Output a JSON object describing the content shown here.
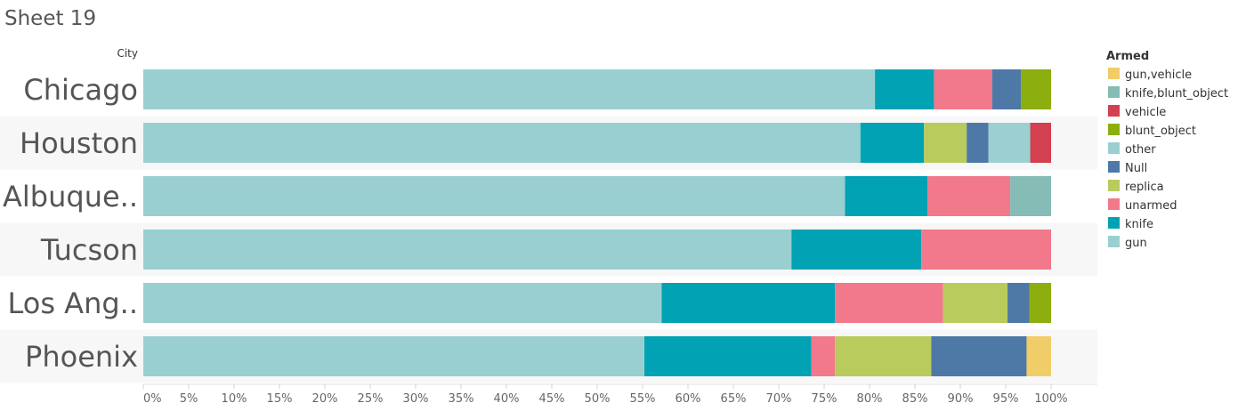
{
  "chart_data": {
    "type": "bar",
    "orientation": "horizontal",
    "stacked": "percent",
    "title": "Sheet 19",
    "row_header": "City",
    "categories": [
      "Chicago",
      "Houston",
      "Albuque..",
      "Tucson",
      "Los Ang..",
      "Phoenix"
    ],
    "xlim": [
      0,
      100
    ],
    "x_ticks": [
      "0%",
      "5%",
      "10%",
      "15%",
      "20%",
      "25%",
      "30%",
      "35%",
      "40%",
      "45%",
      "50%",
      "55%",
      "60%",
      "65%",
      "70%",
      "75%",
      "80%",
      "85%",
      "90%",
      "95%",
      "100%"
    ],
    "legend": {
      "title": "Armed",
      "position": "right",
      "items": [
        {
          "name": "gun,vehicle",
          "color": "#f1cd69"
        },
        {
          "name": "knife,blunt_object",
          "color": "#86bcb6"
        },
        {
          "name": "vehicle",
          "color": "#d3404f"
        },
        {
          "name": "blunt_object",
          "color": "#8cae0f"
        },
        {
          "name": "other",
          "color": "#9ccfd1"
        },
        {
          "name": "Null",
          "color": "#4e79a7"
        },
        {
          "name": "replica",
          "color": "#b8cb5c"
        },
        {
          "name": "unarmed",
          "color": "#f1798b"
        },
        {
          "name": "knife",
          "color": "#00a2b3"
        },
        {
          "name": "gun",
          "color": "#99cfd0"
        }
      ]
    },
    "stack_order": [
      "gun",
      "knife",
      "unarmed",
      "replica",
      "Null",
      "other",
      "blunt_object",
      "vehicle",
      "knife,blunt_object",
      "gun,vehicle"
    ],
    "series": [
      {
        "name": "gun",
        "values": [
          80.6,
          79.0,
          77.3,
          71.4,
          57.1,
          55.2
        ]
      },
      {
        "name": "knife",
        "values": [
          6.5,
          7.0,
          9.1,
          14.3,
          19.1,
          18.4
        ]
      },
      {
        "name": "unarmed",
        "values": [
          6.4,
          0,
          9.1,
          14.3,
          11.9,
          2.6
        ]
      },
      {
        "name": "replica",
        "values": [
          0,
          4.7,
          0,
          0,
          7.1,
          10.6
        ]
      },
      {
        "name": "Null",
        "values": [
          3.2,
          2.4,
          0,
          0,
          2.4,
          10.5
        ]
      },
      {
        "name": "other",
        "values": [
          0,
          4.6,
          0,
          0,
          0,
          0
        ]
      },
      {
        "name": "blunt_object",
        "values": [
          3.3,
          0,
          0,
          0,
          2.4,
          0
        ]
      },
      {
        "name": "vehicle",
        "values": [
          0,
          2.3,
          0,
          0,
          0,
          0
        ]
      },
      {
        "name": "knife,blunt_object",
        "values": [
          0,
          0,
          4.5,
          0,
          0,
          0
        ]
      },
      {
        "name": "gun,vehicle",
        "values": [
          0,
          0,
          0,
          0,
          0,
          2.7
        ]
      }
    ],
    "grid": false
  }
}
